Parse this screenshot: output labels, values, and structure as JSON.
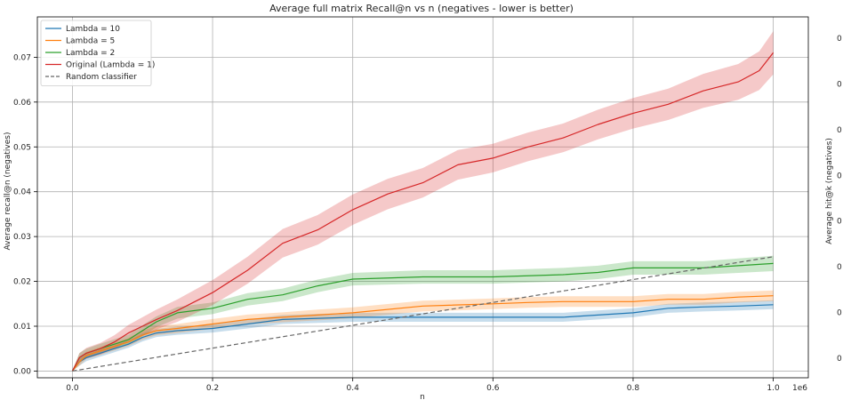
{
  "chart_data": {
    "type": "line",
    "title": "Average full matrix Recall@n vs n (negatives - lower is better)",
    "xlabel": "n",
    "ylabel": "Average recall@n (negatives)",
    "right_ylabel": "Average hit@k (negatives)",
    "right_tick_labels": [
      "0",
      "0",
      "0",
      "0",
      "0",
      "0",
      "0",
      "0"
    ],
    "x_offset_label": "1e6",
    "xlim": [
      -0.05,
      1.05
    ],
    "ylim": [
      -0.0015,
      0.079
    ],
    "xticks": [
      0.0,
      0.2,
      0.4,
      0.6,
      0.8,
      1.0
    ],
    "xtick_labels": [
      "0.0",
      "0.2",
      "0.4",
      "0.6",
      "0.8",
      "1.0"
    ],
    "yticks": [
      0.0,
      0.01,
      0.02,
      0.03,
      0.04,
      0.05,
      0.06,
      0.07
    ],
    "ytick_labels": [
      "0.00",
      "0.01",
      "0.02",
      "0.03",
      "0.04",
      "0.05",
      "0.06",
      "0.07"
    ],
    "grid": true,
    "legend_position": "top-left",
    "series": [
      {
        "name": "Lambda = 10",
        "color": "#1f77b4",
        "style": "solid",
        "x": [
          0.0,
          0.01,
          0.02,
          0.04,
          0.06,
          0.08,
          0.1,
          0.12,
          0.15,
          0.2,
          0.25,
          0.3,
          0.4,
          0.5,
          0.6,
          0.7,
          0.75,
          0.8,
          0.85,
          0.9,
          0.95,
          1.0
        ],
        "y": [
          0.0,
          0.002,
          0.003,
          0.004,
          0.005,
          0.006,
          0.0075,
          0.0085,
          0.009,
          0.0095,
          0.0105,
          0.0115,
          0.012,
          0.012,
          0.012,
          0.012,
          0.0125,
          0.013,
          0.014,
          0.0143,
          0.0145,
          0.0148
        ],
        "band": [
          0.0,
          0.0008,
          0.0008,
          0.0008,
          0.0008,
          0.0008,
          0.0009,
          0.0009,
          0.0009,
          0.0009,
          0.001,
          0.001,
          0.001,
          0.001,
          0.001,
          0.001,
          0.001,
          0.001,
          0.001,
          0.001,
          0.001,
          0.001
        ]
      },
      {
        "name": "Lambda = 5",
        "color": "#ff7f0e",
        "style": "solid",
        "x": [
          0.0,
          0.01,
          0.02,
          0.04,
          0.06,
          0.08,
          0.1,
          0.12,
          0.15,
          0.2,
          0.25,
          0.3,
          0.35,
          0.4,
          0.5,
          0.6,
          0.65,
          0.7,
          0.75,
          0.8,
          0.85,
          0.9,
          0.95,
          1.0
        ],
        "y": [
          0.0,
          0.002,
          0.0035,
          0.0045,
          0.0055,
          0.0065,
          0.008,
          0.009,
          0.0095,
          0.0105,
          0.0115,
          0.012,
          0.0125,
          0.013,
          0.0145,
          0.015,
          0.0153,
          0.0155,
          0.0155,
          0.0155,
          0.016,
          0.016,
          0.0165,
          0.0168
        ],
        "band": [
          0.0,
          0.0008,
          0.0008,
          0.0009,
          0.0009,
          0.0009,
          0.001,
          0.001,
          0.001,
          0.0011,
          0.0011,
          0.0011,
          0.0012,
          0.0012,
          0.0012,
          0.0012,
          0.0012,
          0.0012,
          0.0012,
          0.0012,
          0.0012,
          0.0012,
          0.0012,
          0.0012
        ]
      },
      {
        "name": "Lambda = 2",
        "color": "#2ca02c",
        "style": "solid",
        "x": [
          0.0,
          0.01,
          0.02,
          0.04,
          0.06,
          0.08,
          0.1,
          0.12,
          0.15,
          0.2,
          0.25,
          0.3,
          0.35,
          0.4,
          0.5,
          0.6,
          0.7,
          0.75,
          0.8,
          0.85,
          0.9,
          0.95,
          1.0
        ],
        "y": [
          0.0,
          0.003,
          0.004,
          0.005,
          0.006,
          0.007,
          0.009,
          0.011,
          0.013,
          0.014,
          0.016,
          0.017,
          0.019,
          0.0205,
          0.021,
          0.021,
          0.0215,
          0.022,
          0.023,
          0.023,
          0.023,
          0.0235,
          0.024
        ],
        "band": [
          0.0,
          0.001,
          0.001,
          0.0011,
          0.0011,
          0.0011,
          0.0012,
          0.0012,
          0.0013,
          0.0013,
          0.0014,
          0.0014,
          0.0014,
          0.0014,
          0.0015,
          0.0015,
          0.0015,
          0.0015,
          0.0015,
          0.0015,
          0.0015,
          0.0016,
          0.0017
        ]
      },
      {
        "name": "Original (Lambda = 1)",
        "color": "#d62728",
        "style": "solid",
        "x": [
          0.0,
          0.01,
          0.02,
          0.04,
          0.06,
          0.08,
          0.1,
          0.12,
          0.15,
          0.2,
          0.25,
          0.3,
          0.35,
          0.4,
          0.45,
          0.5,
          0.55,
          0.6,
          0.65,
          0.7,
          0.75,
          0.8,
          0.85,
          0.9,
          0.95,
          0.98,
          1.0
        ],
        "y": [
          0.0,
          0.003,
          0.004,
          0.005,
          0.0065,
          0.0085,
          0.01,
          0.0115,
          0.0135,
          0.0175,
          0.0225,
          0.0285,
          0.0315,
          0.036,
          0.0395,
          0.042,
          0.046,
          0.0475,
          0.05,
          0.052,
          0.055,
          0.0575,
          0.0595,
          0.0625,
          0.0645,
          0.067,
          0.071
        ],
        "band": [
          0.0,
          0.001,
          0.0012,
          0.0013,
          0.0015,
          0.0018,
          0.002,
          0.0022,
          0.0025,
          0.0028,
          0.003,
          0.0032,
          0.0033,
          0.0034,
          0.0034,
          0.0033,
          0.0033,
          0.0032,
          0.0032,
          0.0032,
          0.0033,
          0.0034,
          0.0035,
          0.0038,
          0.004,
          0.0043,
          0.0048
        ]
      },
      {
        "name": "Random classifier",
        "color": "#666666",
        "style": "dashed",
        "x": [
          0.0,
          1.0
        ],
        "y": [
          0.0,
          0.0255
        ]
      }
    ]
  }
}
